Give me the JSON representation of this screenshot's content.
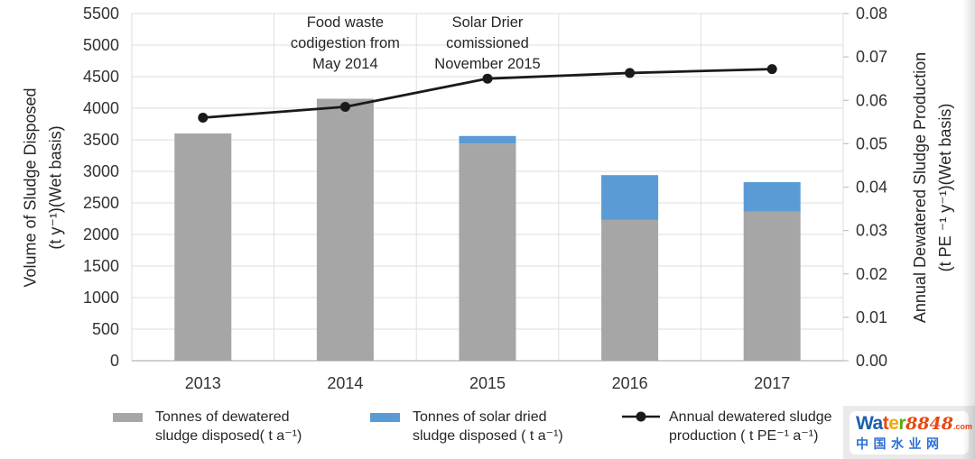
{
  "chart_data": {
    "type": "bar+line",
    "categories": [
      "2013",
      "2014",
      "2015",
      "2016",
      "2017"
    ],
    "series": [
      {
        "name": "Tonnes of dewatered sludge disposed( t a⁻¹)",
        "type": "bar",
        "stack": "disposed",
        "color": "#A6A6A6",
        "axis": "left",
        "values": [
          3600,
          4150,
          3440,
          2230,
          2360
        ]
      },
      {
        "name": "Tonnes of solar dried sludge disposed ( t a⁻¹)",
        "type": "bar",
        "stack": "disposed",
        "color": "#5B9BD5",
        "axis": "left",
        "values": [
          0,
          0,
          120,
          710,
          470
        ]
      },
      {
        "name": "Annual dewatered sludge production ( t PE⁻¹ a⁻¹)",
        "type": "line",
        "color": "#1A1A1A",
        "marker": "circle",
        "axis": "right",
        "values": [
          0.056,
          0.0585,
          0.065,
          0.0663,
          0.0672
        ]
      }
    ],
    "left_axis": {
      "title_line1": "Volume of Sludge Disposed",
      "title_line2": "(t  y⁻¹)(Wet basis)",
      "min": 0,
      "max": 5500,
      "step": 500,
      "tick_labels": [
        "0",
        "500",
        "1000",
        "1500",
        "2000",
        "2500",
        "3000",
        "3500",
        "4000",
        "4500",
        "5000",
        "5500"
      ]
    },
    "right_axis": {
      "title_line1": "Annual Dewatered Sludge Production",
      "title_line2": "(t  PE ⁻¹ y⁻¹)(Wet basis)",
      "min": 0,
      "max": 0.08,
      "step": 0.01,
      "tick_labels": [
        "0.00",
        "0.01",
        "0.02",
        "0.03",
        "0.04",
        "0.05",
        "0.06",
        "0.07",
        "0.08"
      ]
    },
    "annotations": [
      {
        "lines": [
          "Food waste",
          "codigestion from",
          "May 2014"
        ],
        "category_index": 1
      },
      {
        "lines": [
          "Solar Drier",
          "comissioned",
          "November 2015"
        ],
        "category_index": 2
      }
    ],
    "grid": true,
    "legend_position": "bottom",
    "colors": {
      "gridline": "#DEDEDE",
      "axis_line": "#C0C0C0",
      "tick_text": "#333333"
    }
  },
  "legend": {
    "items": [
      {
        "swatch": "gray-bar",
        "line1": "Tonnes of dewatered",
        "line2": "sludge disposed( t a⁻¹)"
      },
      {
        "swatch": "blue-bar",
        "line1": "Tonnes of solar dried",
        "line2": "sludge disposed ( t a⁻¹)"
      },
      {
        "swatch": "line-marker",
        "line1": "Annual dewatered sludge",
        "line2": "production ( t PE⁻¹ a⁻¹)"
      }
    ]
  },
  "watermark": {
    "logo_parts": [
      {
        "text": "Wa",
        "color": "#1B5FAF",
        "style": "main"
      },
      {
        "text": "t",
        "color": "#E8490F",
        "style": "main"
      },
      {
        "text": "e",
        "color": "#F2A900",
        "style": "main"
      },
      {
        "text": "r",
        "color": "#5BA816",
        "style": "main"
      },
      {
        "text": "8848",
        "color": "#E8490F",
        "style": "serif"
      },
      {
        "text": ".com",
        "color": "#E8490F",
        "style": "small"
      }
    ],
    "cn_text": "中国水业网",
    "cn_color": "#2B6FD6"
  }
}
